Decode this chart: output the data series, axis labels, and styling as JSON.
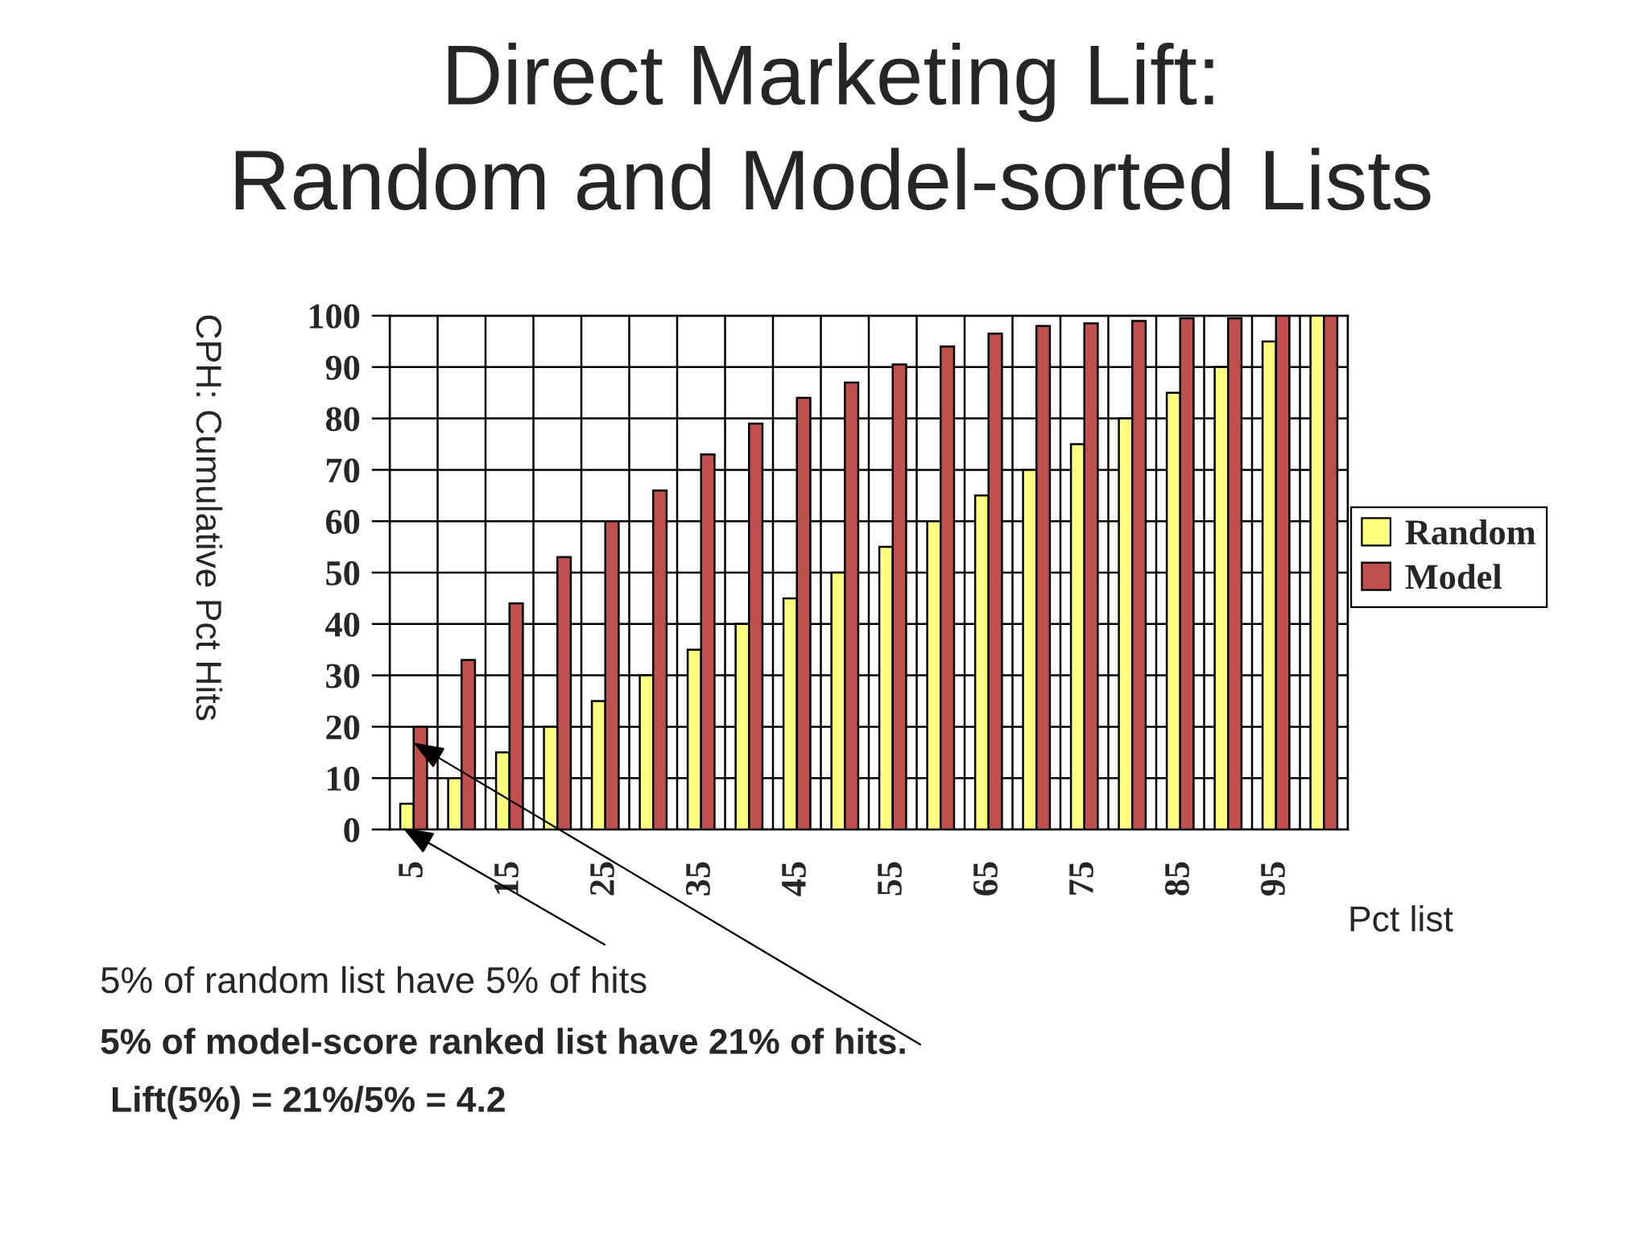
{
  "chart_data": {
    "type": "bar",
    "title": "Direct Marketing Lift:\nRandom and Model-sorted Lists",
    "xlabel": "Pct list",
    "ylabel": "CPH: Cumulative Pct Hits",
    "categories": [
      "5",
      null,
      "15",
      null,
      "25",
      null,
      "35",
      null,
      "45",
      null,
      "55",
      null,
      "65",
      null,
      "75",
      null,
      "85",
      null,
      "95",
      null
    ],
    "series": [
      {
        "name": "Random",
        "color": "#ffff80",
        "values": [
          5,
          10,
          15,
          20,
          25,
          30,
          35,
          40,
          45,
          50,
          55,
          60,
          65,
          70,
          75,
          80,
          85,
          90,
          95,
          100
        ]
      },
      {
        "name": "Model",
        "color": "#c0504d",
        "values": [
          20,
          33,
          44,
          53,
          60,
          66,
          73,
          79,
          84,
          87,
          90.5,
          94,
          96.5,
          98,
          98.5,
          99,
          99.5,
          99.5,
          100,
          100
        ]
      }
    ],
    "ylim": [
      0,
      100
    ],
    "yticks": [
      0,
      10,
      20,
      30,
      40,
      50,
      60,
      70,
      80,
      90,
      100
    ],
    "grid": true,
    "legend": "right",
    "annotations": [
      "5% of random list have 5% of hits",
      "5% of model-score ranked list have 21% of hits.",
      "Lift(5%) = 21%/5% = 4.2"
    ]
  }
}
